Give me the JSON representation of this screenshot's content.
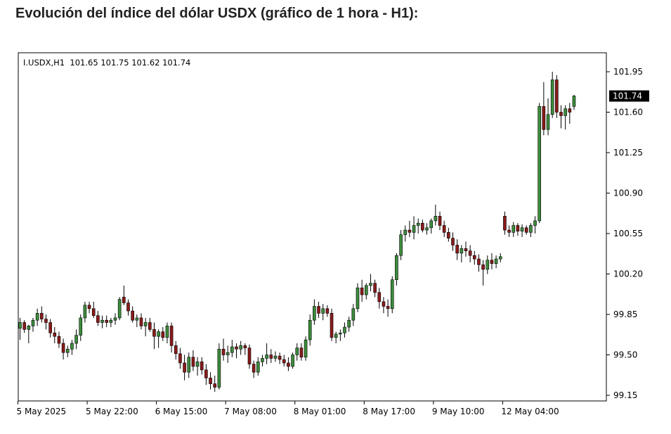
{
  "page": {
    "title": "Evolución del índice del dólar USDX (gráfico de 1 hora - H1):"
  },
  "chart_data": {
    "type": "candlestick",
    "info_bar": "I.USDX,H1  101.65 101.75 101.62 101.74",
    "symbol": "I.USDX",
    "timeframe": "H1",
    "ohlc_last": {
      "open": 101.65,
      "high": 101.75,
      "low": 101.62,
      "close": 101.74
    },
    "last_price_label": "101.74",
    "y_ticks": [
      101.95,
      101.6,
      101.25,
      100.9,
      100.55,
      100.2,
      99.85,
      99.5,
      99.15
    ],
    "y_tick_labels": [
      "101.95",
      "101.60",
      "101.25",
      "100.90",
      "100.55",
      "100.20",
      "99.85",
      "99.50",
      "99.15"
    ],
    "ylim": [
      99.12,
      102.08
    ],
    "x_labels": [
      "5 May 2025",
      "5 May 22:00",
      "6 May 15:00",
      "7 May 08:00",
      "8 May 01:00",
      "8 May 17:00",
      "9 May 10:00",
      "12 May 04:00"
    ],
    "grid": false,
    "colors": {
      "bull": "#3c8c3c",
      "bear": "#8b1a1a",
      "wick": "#000000",
      "frame": "#000000",
      "last_price_bg": "#000000"
    },
    "candles": [
      [
        99.73,
        99.82,
        99.63,
        99.78
      ],
      [
        99.78,
        99.8,
        99.69,
        99.72
      ],
      [
        99.72,
        99.76,
        99.6,
        99.75
      ],
      [
        99.75,
        99.82,
        99.7,
        99.8
      ],
      [
        99.8,
        99.9,
        99.75,
        99.86
      ],
      [
        99.86,
        99.92,
        99.78,
        99.81
      ],
      [
        99.81,
        99.85,
        99.72,
        99.78
      ],
      [
        99.78,
        99.81,
        99.65,
        99.69
      ],
      [
        99.69,
        99.74,
        99.6,
        99.66
      ],
      [
        99.66,
        99.7,
        99.56,
        99.6
      ],
      [
        99.6,
        99.64,
        99.46,
        99.52
      ],
      [
        99.52,
        99.58,
        99.48,
        99.55
      ],
      [
        99.55,
        99.63,
        99.5,
        99.6
      ],
      [
        99.6,
        99.72,
        99.55,
        99.67
      ],
      [
        99.67,
        99.85,
        99.62,
        99.82
      ],
      [
        99.82,
        99.96,
        99.78,
        99.93
      ],
      [
        99.93,
        99.96,
        99.86,
        99.9
      ],
      [
        99.9,
        99.96,
        99.82,
        99.84
      ],
      [
        99.84,
        99.88,
        99.75,
        99.78
      ],
      [
        99.78,
        99.84,
        99.73,
        99.8
      ],
      [
        99.8,
        99.84,
        99.74,
        99.78
      ],
      [
        99.78,
        99.82,
        99.74,
        99.8
      ],
      [
        99.8,
        99.86,
        99.76,
        99.82
      ],
      [
        99.82,
        100.0,
        99.8,
        99.98
      ],
      [
        100.0,
        100.1,
        99.93,
        99.95
      ],
      [
        99.95,
        99.98,
        99.84,
        99.88
      ],
      [
        99.88,
        99.92,
        99.78,
        99.8
      ],
      [
        99.8,
        99.85,
        99.74,
        99.82
      ],
      [
        99.82,
        99.86,
        99.72,
        99.75
      ],
      [
        99.75,
        99.82,
        99.66,
        99.78
      ],
      [
        99.78,
        99.82,
        99.7,
        99.72
      ],
      [
        99.72,
        99.78,
        99.55,
        99.66
      ],
      [
        99.66,
        99.72,
        99.56,
        99.7
      ],
      [
        99.7,
        99.74,
        99.62,
        99.65
      ],
      [
        99.65,
        99.78,
        99.6,
        99.75
      ],
      [
        99.75,
        99.78,
        99.52,
        99.58
      ],
      [
        99.58,
        99.62,
        99.46,
        99.51
      ],
      [
        99.51,
        99.56,
        99.38,
        99.43
      ],
      [
        99.43,
        99.5,
        99.28,
        99.35
      ],
      [
        99.35,
        99.52,
        99.3,
        99.48
      ],
      [
        99.48,
        99.54,
        99.36,
        99.4
      ],
      [
        99.4,
        99.48,
        99.32,
        99.44
      ],
      [
        99.44,
        99.48,
        99.33,
        99.37
      ],
      [
        99.37,
        99.42,
        99.24,
        99.3
      ],
      [
        99.3,
        99.35,
        99.2,
        99.25
      ],
      [
        99.25,
        99.32,
        99.18,
        99.22
      ],
      [
        99.22,
        99.6,
        99.2,
        99.55
      ],
      [
        99.55,
        99.64,
        99.45,
        99.5
      ],
      [
        99.5,
        99.58,
        99.43,
        99.52
      ],
      [
        99.52,
        99.63,
        99.48,
        99.57
      ],
      [
        99.57,
        99.6,
        99.47,
        99.55
      ],
      [
        99.55,
        99.62,
        99.5,
        99.58
      ],
      [
        99.58,
        99.6,
        99.5,
        99.56
      ],
      [
        99.56,
        99.59,
        99.38,
        99.42
      ],
      [
        99.42,
        99.45,
        99.3,
        99.35
      ],
      [
        99.35,
        99.48,
        99.32,
        99.44
      ],
      [
        99.44,
        99.5,
        99.4,
        99.47
      ],
      [
        99.47,
        99.6,
        99.42,
        99.5
      ],
      [
        99.5,
        99.55,
        99.43,
        99.47
      ],
      [
        99.47,
        99.53,
        99.44,
        99.49
      ],
      [
        99.49,
        99.52,
        99.42,
        99.46
      ],
      [
        99.46,
        99.5,
        99.4,
        99.43
      ],
      [
        99.43,
        99.48,
        99.36,
        99.4
      ],
      [
        99.4,
        99.52,
        99.38,
        99.5
      ],
      [
        99.5,
        99.6,
        99.45,
        99.56
      ],
      [
        99.56,
        99.6,
        99.45,
        99.48
      ],
      [
        99.48,
        99.66,
        99.45,
        99.63
      ],
      [
        99.63,
        99.85,
        99.58,
        99.8
      ],
      [
        99.8,
        99.98,
        99.76,
        99.92
      ],
      [
        99.92,
        99.96,
        99.82,
        99.86
      ],
      [
        99.86,
        99.94,
        99.8,
        99.9
      ],
      [
        99.9,
        99.93,
        99.83,
        99.86
      ],
      [
        99.86,
        99.9,
        99.62,
        99.65
      ],
      [
        99.65,
        99.7,
        99.6,
        99.68
      ],
      [
        99.68,
        99.72,
        99.62,
        99.69
      ],
      [
        99.69,
        99.78,
        99.65,
        99.74
      ],
      [
        99.74,
        99.83,
        99.7,
        99.8
      ],
      [
        99.8,
        99.94,
        99.75,
        99.9
      ],
      [
        99.9,
        100.12,
        99.87,
        100.08
      ],
      [
        100.08,
        100.15,
        99.96,
        100.02
      ],
      [
        100.02,
        100.12,
        99.98,
        100.1
      ],
      [
        100.1,
        100.2,
        100.05,
        100.12
      ],
      [
        100.12,
        100.15,
        100.0,
        100.04
      ],
      [
        100.04,
        100.08,
        99.9,
        99.96
      ],
      [
        99.96,
        100.0,
        99.86,
        99.92
      ],
      [
        99.92,
        99.98,
        99.83,
        99.9
      ],
      [
        99.9,
        100.18,
        99.86,
        100.15
      ],
      [
        100.15,
        100.38,
        100.1,
        100.36
      ],
      [
        100.36,
        100.58,
        100.32,
        100.54
      ],
      [
        100.54,
        100.62,
        100.48,
        100.58
      ],
      [
        100.58,
        100.66,
        100.52,
        100.56
      ],
      [
        100.56,
        100.7,
        100.5,
        100.62
      ],
      [
        100.62,
        100.68,
        100.55,
        100.64
      ],
      [
        100.64,
        100.67,
        100.56,
        100.58
      ],
      [
        100.58,
        100.64,
        100.54,
        100.6
      ],
      [
        100.6,
        100.68,
        100.55,
        100.66
      ],
      [
        100.66,
        100.8,
        100.62,
        100.7
      ],
      [
        100.7,
        100.74,
        100.58,
        100.62
      ],
      [
        100.62,
        100.66,
        100.52,
        100.56
      ],
      [
        100.56,
        100.6,
        100.48,
        100.51
      ],
      [
        100.51,
        100.56,
        100.4,
        100.45
      ],
      [
        100.45,
        100.5,
        100.32,
        100.38
      ],
      [
        100.38,
        100.45,
        100.3,
        100.42
      ],
      [
        100.42,
        100.48,
        100.35,
        100.4
      ],
      [
        100.4,
        100.45,
        100.3,
        100.36
      ],
      [
        100.36,
        100.4,
        100.28,
        100.33
      ],
      [
        100.33,
        100.37,
        100.22,
        100.28
      ],
      [
        100.28,
        100.32,
        100.1,
        100.24
      ],
      [
        100.24,
        100.36,
        100.2,
        100.32
      ],
      [
        100.32,
        100.38,
        100.24,
        100.29
      ],
      [
        100.29,
        100.36,
        100.25,
        100.33
      ],
      [
        100.33,
        100.38,
        100.3,
        100.35
      ],
      [
        100.7,
        100.74,
        100.54,
        100.58
      ],
      [
        100.58,
        100.62,
        100.52,
        100.56
      ],
      [
        100.56,
        100.65,
        100.52,
        100.62
      ],
      [
        100.62,
        100.64,
        100.53,
        100.57
      ],
      [
        100.57,
        100.63,
        100.52,
        100.6
      ],
      [
        100.6,
        100.62,
        100.54,
        100.56
      ],
      [
        100.56,
        100.64,
        100.52,
        100.62
      ],
      [
        100.62,
        100.7,
        100.55,
        100.66
      ],
      [
        100.66,
        101.68,
        100.64,
        101.65
      ],
      [
        101.65,
        101.86,
        101.4,
        101.45
      ],
      [
        101.45,
        101.72,
        101.4,
        101.58
      ],
      [
        101.58,
        101.95,
        101.55,
        101.88
      ],
      [
        101.88,
        101.92,
        101.55,
        101.6
      ],
      [
        101.6,
        101.66,
        101.46,
        101.57
      ],
      [
        101.57,
        101.66,
        101.45,
        101.63
      ],
      [
        101.63,
        101.68,
        101.5,
        101.6
      ],
      [
        101.65,
        101.75,
        101.62,
        101.74
      ]
    ]
  }
}
